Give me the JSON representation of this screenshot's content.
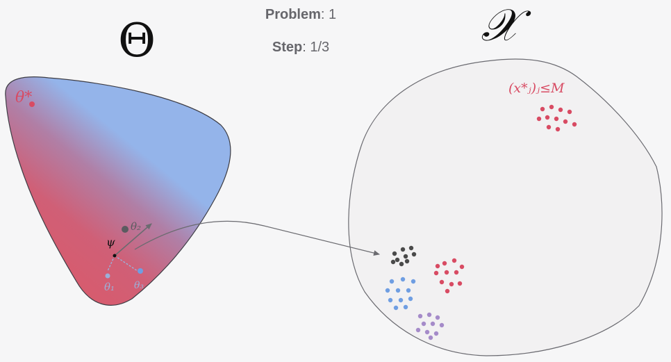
{
  "hud": {
    "problem_label": "Problem",
    "problem_value": "1",
    "step_label": "Step",
    "step_value": "1/3"
  },
  "parameter_space": {
    "title": "Θ",
    "optimum_label": "θ*",
    "center_label": "ψ",
    "point_labels": [
      "θ₁",
      "θ₂",
      "θ₃"
    ],
    "gradient_colors": {
      "high": "#94b4ea",
      "low": "#d85b6d"
    }
  },
  "data_space": {
    "title": "𝒳",
    "target_label": "(x*ⱼ)ⱼ≤M",
    "clusters": [
      {
        "name": "target",
        "color": "#d84b63"
      },
      {
        "name": "current",
        "color": "#4a4a4a"
      },
      {
        "name": "red",
        "color": "#d84b63"
      },
      {
        "name": "blue",
        "color": "#6f9ee2"
      },
      {
        "name": "purple",
        "color": "#a58bc9"
      }
    ]
  }
}
